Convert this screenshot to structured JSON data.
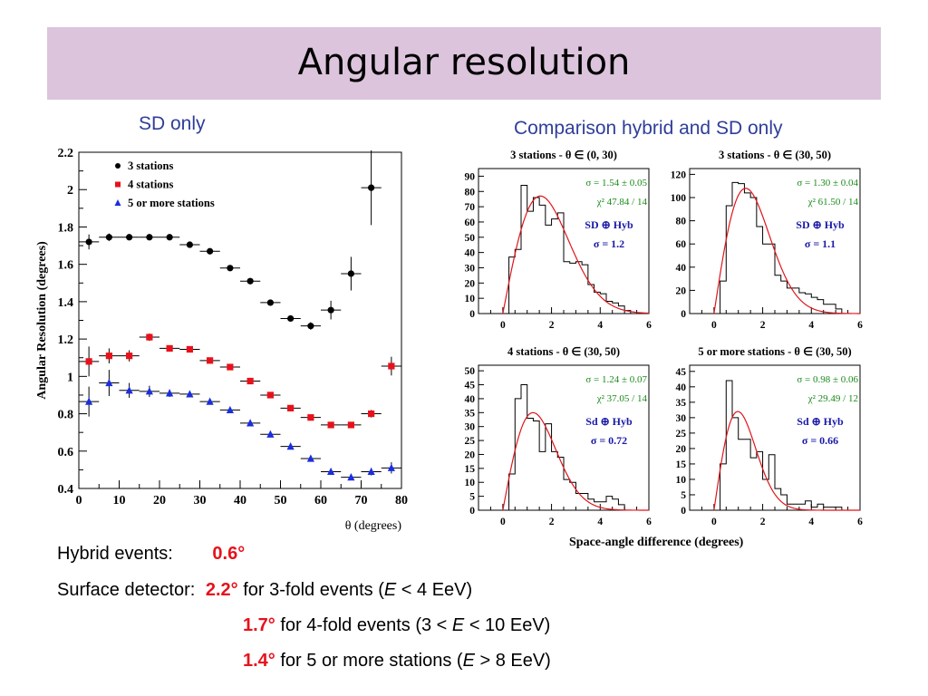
{
  "slide": {
    "title": "Angular resolution",
    "left_subtitle": "SD only",
    "right_subtitle": "Comparison hybrid and SD only"
  },
  "colors": {
    "title_bg": "#dcc4dc",
    "subtitle": "#2f3e99",
    "highlight": "#e8111b",
    "fit_curve": "#e0151b",
    "stats_green": "#1a8a1a",
    "stats_blue": "#1a1aa8"
  },
  "summary": {
    "hybrid_label": "Hybrid events:",
    "hybrid_value": "0.6°",
    "sd_label": "Surface detector:",
    "lines": [
      {
        "value": "2.2°",
        "text1": " for 3-fold events (",
        "var": "E",
        "text2": " < 4 EeV)"
      },
      {
        "value": "1.7°",
        "text1": " for 4-fold events (3 < ",
        "var": "E",
        "text2": " < 10 EeV)"
      },
      {
        "value": "1.4°",
        "text1": " for 5 or more stations (",
        "var": "E",
        "text2": " > 8 EeV)"
      }
    ]
  },
  "chart_data": [
    {
      "type": "scatter",
      "title": "",
      "xlabel": "θ (degrees)",
      "ylabel": "Angular Resolution (degrees)",
      "xlim": [
        0,
        80
      ],
      "ylim": [
        0.4,
        2.2
      ],
      "xticks": [
        "0",
        "10",
        "20",
        "30",
        "40",
        "50",
        "60",
        "70",
        "80"
      ],
      "yticks": [
        "0.4",
        "0.6",
        "0.8",
        "1",
        "1.2",
        "1.4",
        "1.6",
        "1.8",
        "2",
        "2.2"
      ],
      "legend_position": "top-left",
      "series": [
        {
          "name": "3 stations",
          "color": "#000000",
          "marker": "circle",
          "x": [
            2.5,
            7.5,
            12.5,
            17.5,
            22.5,
            27.5,
            32.5,
            37.5,
            42.5,
            47.5,
            52.5,
            57.5,
            62.5,
            67.5,
            72.5
          ],
          "y": [
            1.72,
            1.745,
            1.745,
            1.745,
            1.745,
            1.705,
            1.67,
            1.58,
            1.51,
            1.395,
            1.31,
            1.27,
            1.355,
            1.55,
            2.01
          ],
          "err": [
            0.04,
            0.02,
            0.015,
            0.015,
            0.015,
            0.015,
            0.015,
            0.015,
            0.015,
            0.015,
            0.015,
            0.02,
            0.05,
            0.09,
            0.2
          ]
        },
        {
          "name": "4 stations",
          "color": "#e8111b",
          "marker": "square",
          "x": [
            2.5,
            7.5,
            12.5,
            17.5,
            22.5,
            27.5,
            32.5,
            37.5,
            42.5,
            47.5,
            52.5,
            57.5,
            62.5,
            67.5,
            72.5,
            77.5
          ],
          "y": [
            1.08,
            1.11,
            1.11,
            1.21,
            1.15,
            1.145,
            1.085,
            1.05,
            0.975,
            0.9,
            0.83,
            0.78,
            0.74,
            0.74,
            0.8,
            1.055
          ],
          "err": [
            0.08,
            0.04,
            0.03,
            0.02,
            0.015,
            0.015,
            0.015,
            0.015,
            0.015,
            0.015,
            0.015,
            0.015,
            0.015,
            0.015,
            0.02,
            0.05
          ]
        },
        {
          "name": "5 or more stations",
          "color": "#1a2ee0",
          "marker": "triangle",
          "x": [
            2.5,
            7.5,
            12.5,
            17.5,
            22.5,
            27.5,
            32.5,
            37.5,
            42.5,
            47.5,
            52.5,
            57.5,
            62.5,
            67.5,
            72.5,
            77.5
          ],
          "y": [
            0.865,
            0.965,
            0.925,
            0.92,
            0.91,
            0.905,
            0.865,
            0.82,
            0.75,
            0.69,
            0.625,
            0.56,
            0.49,
            0.46,
            0.49,
            0.51
          ],
          "err": [
            0.08,
            0.07,
            0.04,
            0.03,
            0.02,
            0.015,
            0.015,
            0.015,
            0.015,
            0.015,
            0.015,
            0.015,
            0.015,
            0.015,
            0.02,
            0.03
          ]
        }
      ]
    },
    {
      "type": "area",
      "title": "3 stations - θ ∈ (0, 30)",
      "xlim": [
        -1,
        6
      ],
      "ylim": [
        0,
        95
      ],
      "xticks": [
        "0",
        "2",
        "4",
        "6"
      ],
      "yticks": [
        "0",
        "10",
        "20",
        "30",
        "40",
        "50",
        "60",
        "70",
        "80",
        "90"
      ],
      "bin_edges": [
        0,
        0.25,
        0.5,
        0.75,
        1,
        1.25,
        1.5,
        1.75,
        2,
        2.25,
        2.5,
        2.75,
        3,
        3.25,
        3.5,
        3.75,
        4,
        4.25,
        4.5,
        4.75,
        5,
        5.25,
        5.5,
        5.75,
        6
      ],
      "counts": [
        0,
        37,
        42,
        84,
        67,
        76,
        71,
        58,
        62,
        66,
        34,
        33,
        34,
        32,
        19,
        14,
        13,
        8,
        7,
        5,
        2,
        0,
        0,
        0
      ],
      "fit": {
        "sigma": 1.54,
        "amplitude": 77
      },
      "stats": [
        "σ = 1.54 ± 0.05",
        "χ²   47.84 / 14"
      ],
      "sd_box": [
        "SD ⊕ Hyb",
        "σ = 1.2"
      ]
    },
    {
      "type": "area",
      "title": "3 stations - θ ∈ (30, 50)",
      "xlim": [
        -1,
        6
      ],
      "ylim": [
        0,
        125
      ],
      "xticks": [
        "0",
        "2",
        "4",
        "6"
      ],
      "yticks": [
        "0",
        "20",
        "40",
        "60",
        "80",
        "100",
        "120"
      ],
      "bin_edges": [
        0,
        0.25,
        0.5,
        0.75,
        1,
        1.25,
        1.5,
        1.75,
        2,
        2.25,
        2.5,
        2.75,
        3,
        3.25,
        3.5,
        3.75,
        4,
        4.25,
        4.5,
        4.75,
        5,
        5.25,
        5.5,
        5.75,
        6
      ],
      "counts": [
        0,
        28,
        93,
        113,
        112,
        104,
        100,
        75,
        60,
        60,
        33,
        28,
        22,
        22,
        18,
        17,
        14,
        12,
        8,
        8,
        4,
        0,
        0,
        0
      ],
      "fit": {
        "sigma": 1.3,
        "amplitude": 108
      },
      "stats": [
        "σ = 1.30 ± 0.04",
        "χ²   61.50 / 14"
      ],
      "sd_box": [
        "SD ⊕ Hyb",
        "σ = 1.1"
      ]
    },
    {
      "type": "area",
      "title": "4 stations - θ ∈ (30, 50)",
      "xlim": [
        -1,
        6
      ],
      "ylim": [
        0,
        52
      ],
      "xticks": [
        "0",
        "2",
        "4",
        "6"
      ],
      "yticks": [
        "0",
        "5",
        "10",
        "15",
        "20",
        "25",
        "30",
        "35",
        "40",
        "45",
        "50"
      ],
      "bin_edges": [
        0,
        0.25,
        0.5,
        0.75,
        1,
        1.25,
        1.5,
        1.75,
        2,
        2.25,
        2.5,
        2.75,
        3,
        3.25,
        3.5,
        3.75,
        4,
        4.25,
        4.5,
        4.75,
        5,
        5.25,
        5.5,
        5.75,
        6
      ],
      "counts": [
        0,
        13,
        40,
        45,
        33,
        32,
        21,
        31,
        21,
        19,
        11,
        10,
        6,
        6,
        4,
        3,
        3,
        5,
        4,
        2,
        0,
        0,
        0,
        0
      ],
      "fit": {
        "sigma": 1.24,
        "amplitude": 35
      },
      "stats": [
        "σ = 1.24 ± 0.07",
        "χ²   37.05 / 14"
      ],
      "sd_box": [
        "Sd ⊕ Hyb",
        "σ = 0.72"
      ]
    },
    {
      "type": "area",
      "title": "5 or more stations - θ ∈ (30, 50)",
      "xlim": [
        -1,
        6
      ],
      "ylim": [
        0,
        47
      ],
      "xticks": [
        "0",
        "2",
        "4",
        "6"
      ],
      "yticks": [
        "0",
        "5",
        "10",
        "15",
        "20",
        "25",
        "30",
        "35",
        "40",
        "45"
      ],
      "bin_edges": [
        0,
        0.25,
        0.5,
        0.75,
        1,
        1.25,
        1.5,
        1.75,
        2,
        2.25,
        2.5,
        2.75,
        3,
        3.25,
        3.5,
        3.75,
        4,
        4.25,
        4.5,
        4.75,
        5,
        5.25,
        5.5,
        5.75,
        6
      ],
      "counts": [
        0,
        15,
        42,
        30,
        23,
        23,
        17,
        19,
        10,
        18,
        7,
        5,
        2,
        2,
        2,
        3,
        1,
        2,
        1,
        1,
        1,
        0,
        0,
        0
      ],
      "fit": {
        "sigma": 0.98,
        "amplitude": 32
      },
      "stats": [
        "σ = 0.98 ± 0.06",
        "χ²   29.49 / 12"
      ],
      "sd_box": [
        "Sd ⊕ Hyb",
        "σ = 0.66"
      ]
    }
  ],
  "histogram_xlabel": "Space-angle difference (degrees)"
}
